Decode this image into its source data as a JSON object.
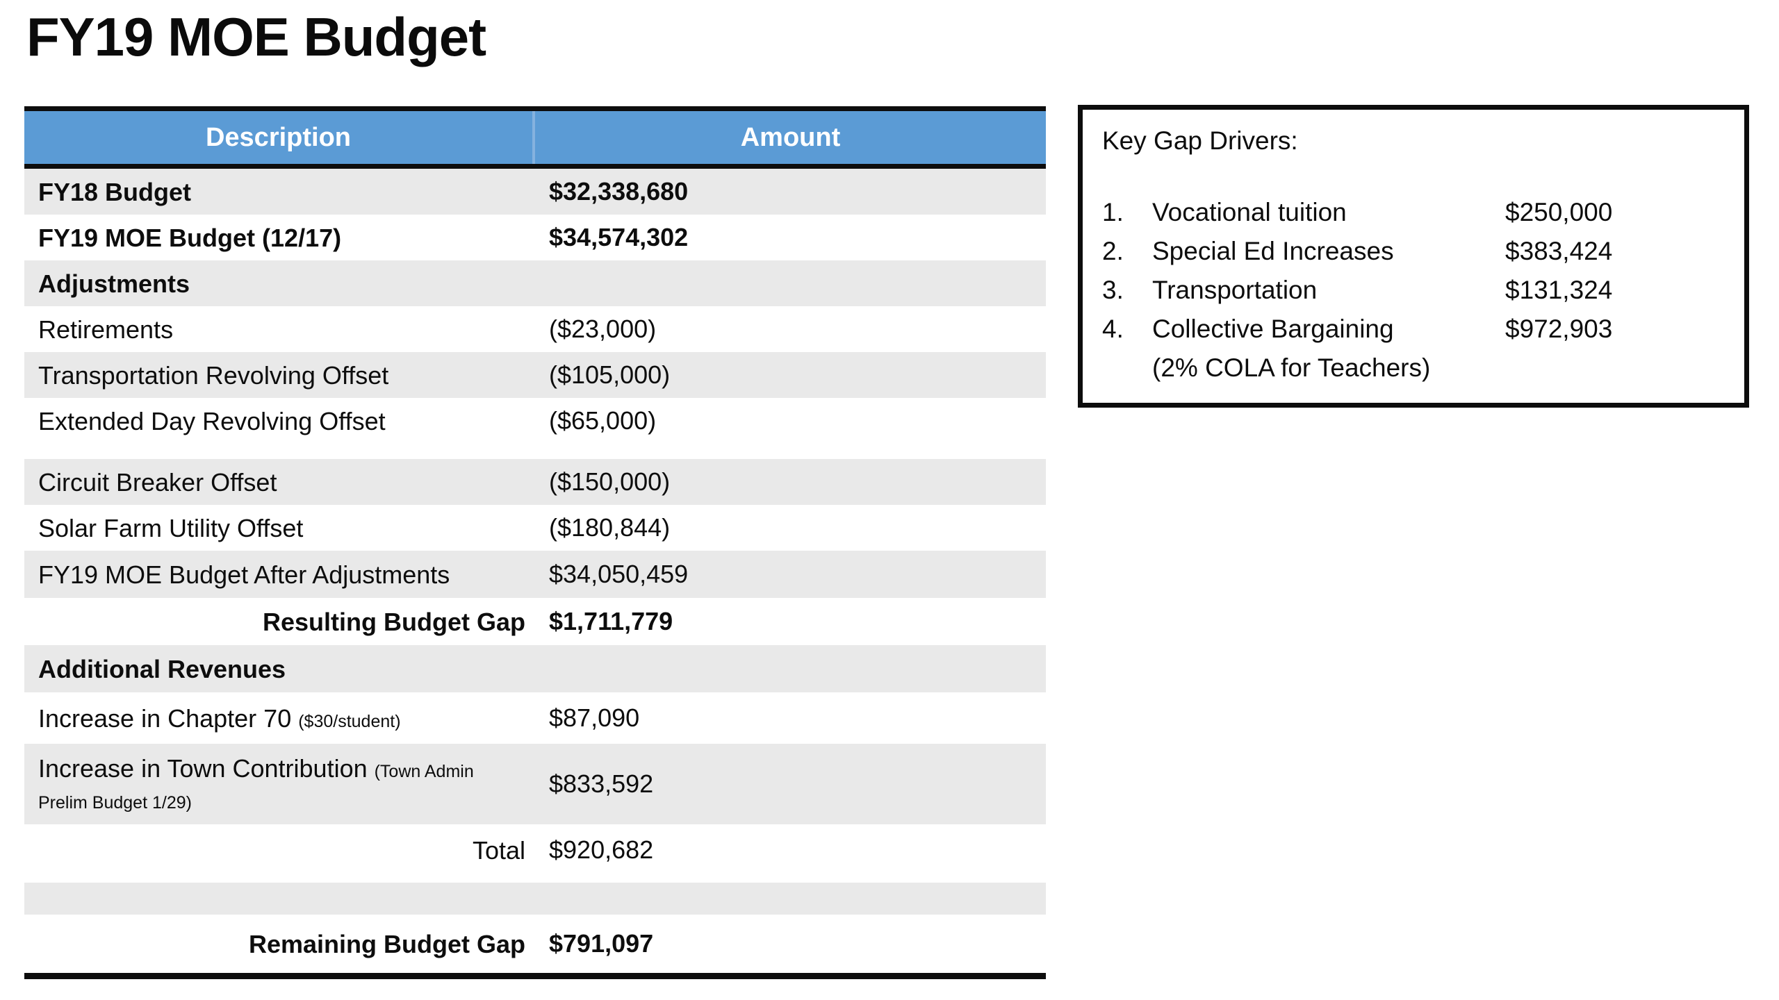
{
  "title": "FY19 MOE Budget",
  "colors": {
    "header_blue": "#5b9bd5",
    "header_text": "#ffffff",
    "row_gray": "#e9e9e9",
    "border_black": "#0d0d0d"
  },
  "table": {
    "headers": {
      "description": "Description",
      "amount": "Amount"
    },
    "rows": [
      {
        "description": "FY18 Budget",
        "amount": "$32,338,680"
      },
      {
        "description": "FY19 MOE Budget (12/17)",
        "amount": "$34,574,302"
      },
      {
        "description": "Adjustments",
        "amount": ""
      },
      {
        "description": "Retirements",
        "amount": "($23,000)"
      },
      {
        "description": "Transportation Revolving Offset",
        "amount": "($105,000)"
      },
      {
        "description": "Extended Day Revolving Offset",
        "amount": "($65,000)"
      },
      {
        "description": "Circuit Breaker Offset",
        "amount": "($150,000)"
      },
      {
        "description": "Solar Farm Utility Offset",
        "amount": "($180,844)"
      },
      {
        "description": "FY19 MOE Budget After Adjustments",
        "amount": "$34,050,459"
      },
      {
        "description": "Resulting Budget Gap",
        "amount": "$1,711,779"
      },
      {
        "description": "Additional Revenues",
        "amount": ""
      },
      {
        "description": "Increase in Chapter 70",
        "note": "($30/student)",
        "amount": "$87,090"
      },
      {
        "description": "Increase in Town Contribution",
        "note": "(Town Admin Prelim Budget 1/29)",
        "amount": "$833,592"
      },
      {
        "description": "Total",
        "amount": "$920,682"
      },
      {
        "description": "",
        "amount": ""
      },
      {
        "description": "Remaining Budget Gap",
        "amount": "$791,097"
      }
    ]
  },
  "key_gap_drivers": {
    "title": "Key Gap Drivers:",
    "items": [
      {
        "number": "1.",
        "label": "Vocational tuition",
        "amount": "$250,000"
      },
      {
        "number": "2.",
        "label": "Special Ed Increases",
        "amount": "$383,424"
      },
      {
        "number": "3.",
        "label": "Transportation",
        "amount": "$131,324"
      },
      {
        "number": "4.",
        "label": "Collective Bargaining",
        "amount": "$972,903",
        "sub_label": "(2% COLA for Teachers)"
      }
    ]
  }
}
